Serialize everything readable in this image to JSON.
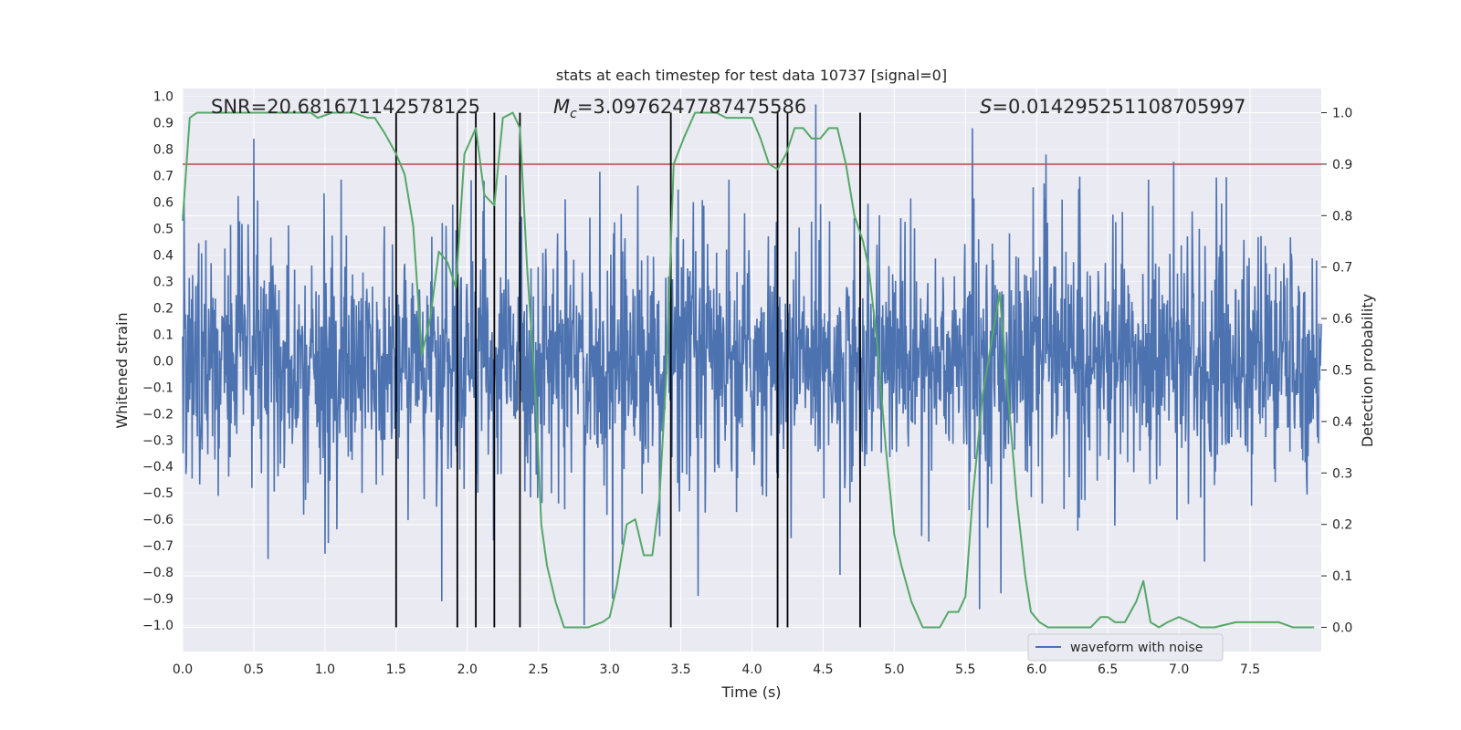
{
  "chart_data": {
    "type": "line",
    "title": "stats at each timestep for test data 10737 [signal=0]",
    "xlabel": "Time (s)",
    "ylabel": "Whitened strain",
    "y2label": "Detection probability",
    "xlim": [
      0.0,
      8.0
    ],
    "ylim": [
      -1.1,
      1.03
    ],
    "y2lim": [
      -0.047,
      1.047
    ],
    "xticks": [
      "0.0",
      "0.5",
      "1.0",
      "1.5",
      "2.0",
      "2.5",
      "3.0",
      "3.5",
      "4.0",
      "4.5",
      "5.0",
      "5.5",
      "6.0",
      "6.5",
      "7.0",
      "7.5"
    ],
    "yticks": [
      "1.0",
      "0.9",
      "0.8",
      "0.7",
      "0.6",
      "0.5",
      "0.4",
      "0.3",
      "0.2",
      "0.1",
      "0.0",
      "-0.1",
      "-0.2",
      "-0.3",
      "-0.4",
      "-0.5",
      "-0.6",
      "-0.7",
      "-0.8",
      "-0.9",
      "-1.0"
    ],
    "y2ticks": [
      "1.0",
      "0.9",
      "0.8",
      "0.7",
      "0.6",
      "0.5",
      "0.4",
      "0.3",
      "0.2",
      "0.1",
      "0.0"
    ],
    "grid": true,
    "legend": {
      "placement": "lower-center",
      "entries": [
        "waveform with noise"
      ]
    },
    "annotations": {
      "snr": "SNR=20.681671142578125",
      "mc_symbol": "M",
      "mc_sub": "c",
      "mc_value": "=3.0976247787475586",
      "s_symbol": "S",
      "s_value": "=0.014295251108705997"
    },
    "threshold": {
      "y2": 0.9
    },
    "event_lines_x": [
      1.5,
      1.93,
      2.06,
      2.19,
      2.37,
      3.43,
      4.18,
      4.25,
      4.76
    ],
    "series": [
      {
        "name": "waveform with noise",
        "kind": "noise",
        "amplitude_typical": 0.4,
        "peaks": [
          {
            "x": 0.5,
            "y": 0.84
          },
          {
            "x": 0.6,
            "y": -0.75
          },
          {
            "x": 1.0,
            "y": -0.73
          },
          {
            "x": 1.82,
            "y": -0.91
          },
          {
            "x": 2.82,
            "y": -1.0
          },
          {
            "x": 3.02,
            "y": -0.9
          },
          {
            "x": 3.62,
            "y": -0.89
          },
          {
            "x": 4.45,
            "y": 0.97
          },
          {
            "x": 4.62,
            "y": -0.81
          },
          {
            "x": 5.55,
            "y": 0.88
          },
          {
            "x": 5.6,
            "y": -0.94
          },
          {
            "x": 5.75,
            "y": -0.88
          },
          {
            "x": 7.18,
            "y": -0.76
          }
        ]
      },
      {
        "name": "",
        "kind": "probability",
        "x": [
          0.0,
          0.05,
          0.1,
          0.2,
          0.3,
          0.5,
          0.7,
          0.9,
          0.95,
          1.05,
          1.2,
          1.3,
          1.35,
          1.42,
          1.5,
          1.56,
          1.62,
          1.68,
          1.74,
          1.8,
          1.86,
          1.92,
          1.98,
          2.06,
          2.12,
          2.19,
          2.25,
          2.32,
          2.37,
          2.42,
          2.48,
          2.52,
          2.56,
          2.62,
          2.68,
          2.75,
          2.85,
          2.95,
          3.0,
          3.05,
          3.12,
          3.18,
          3.24,
          3.3,
          3.35,
          3.4,
          3.45,
          3.52,
          3.6,
          3.68,
          3.75,
          3.82,
          3.9,
          4.0,
          4.06,
          4.12,
          4.18,
          4.24,
          4.3,
          4.36,
          4.42,
          4.48,
          4.54,
          4.6,
          4.66,
          4.72,
          4.78,
          4.82,
          4.88,
          4.94,
          5.0,
          5.05,
          5.12,
          5.2,
          5.26,
          5.32,
          5.38,
          5.45,
          5.5,
          5.55,
          5.62,
          5.68,
          5.74,
          5.8,
          5.86,
          5.92,
          5.96,
          6.02,
          6.08,
          6.15,
          6.3,
          6.38,
          6.45,
          6.5,
          6.55,
          6.62,
          6.7,
          6.75,
          6.8,
          6.86,
          6.92,
          7.0,
          7.08,
          7.15,
          7.25,
          7.4,
          7.55,
          7.7,
          7.8,
          7.95
        ],
        "y": [
          0.79,
          0.99,
          1.0,
          1.0,
          1.0,
          1.0,
          1.0,
          1.0,
          0.99,
          1.0,
          1.0,
          0.99,
          0.99,
          0.96,
          0.92,
          0.88,
          0.78,
          0.53,
          0.6,
          0.73,
          0.71,
          0.66,
          0.92,
          0.97,
          0.84,
          0.82,
          0.99,
          1.0,
          0.97,
          0.7,
          0.45,
          0.2,
          0.12,
          0.05,
          0.0,
          0.0,
          0.0,
          0.01,
          0.02,
          0.08,
          0.2,
          0.21,
          0.14,
          0.14,
          0.25,
          0.5,
          0.9,
          0.95,
          1.0,
          1.0,
          1.0,
          0.99,
          0.99,
          0.99,
          0.95,
          0.9,
          0.89,
          0.92,
          0.97,
          0.97,
          0.95,
          0.95,
          0.97,
          0.97,
          0.9,
          0.8,
          0.75,
          0.7,
          0.55,
          0.35,
          0.18,
          0.12,
          0.05,
          0.0,
          0.0,
          0.0,
          0.03,
          0.03,
          0.06,
          0.25,
          0.45,
          0.55,
          0.65,
          0.45,
          0.25,
          0.1,
          0.03,
          0.01,
          0.0,
          0.0,
          0.0,
          0.0,
          0.02,
          0.02,
          0.01,
          0.01,
          0.05,
          0.09,
          0.01,
          0.0,
          0.01,
          0.02,
          0.01,
          0.0,
          0.0,
          0.01,
          0.01,
          0.01,
          0.0,
          0.0
        ]
      }
    ],
    "colors": {
      "background": "#eaeaf2",
      "grid": "#ffffff",
      "waveform": "#4c72b0",
      "probability": "#55a868",
      "threshold": "#c44e52",
      "event_line": "#000000"
    }
  }
}
